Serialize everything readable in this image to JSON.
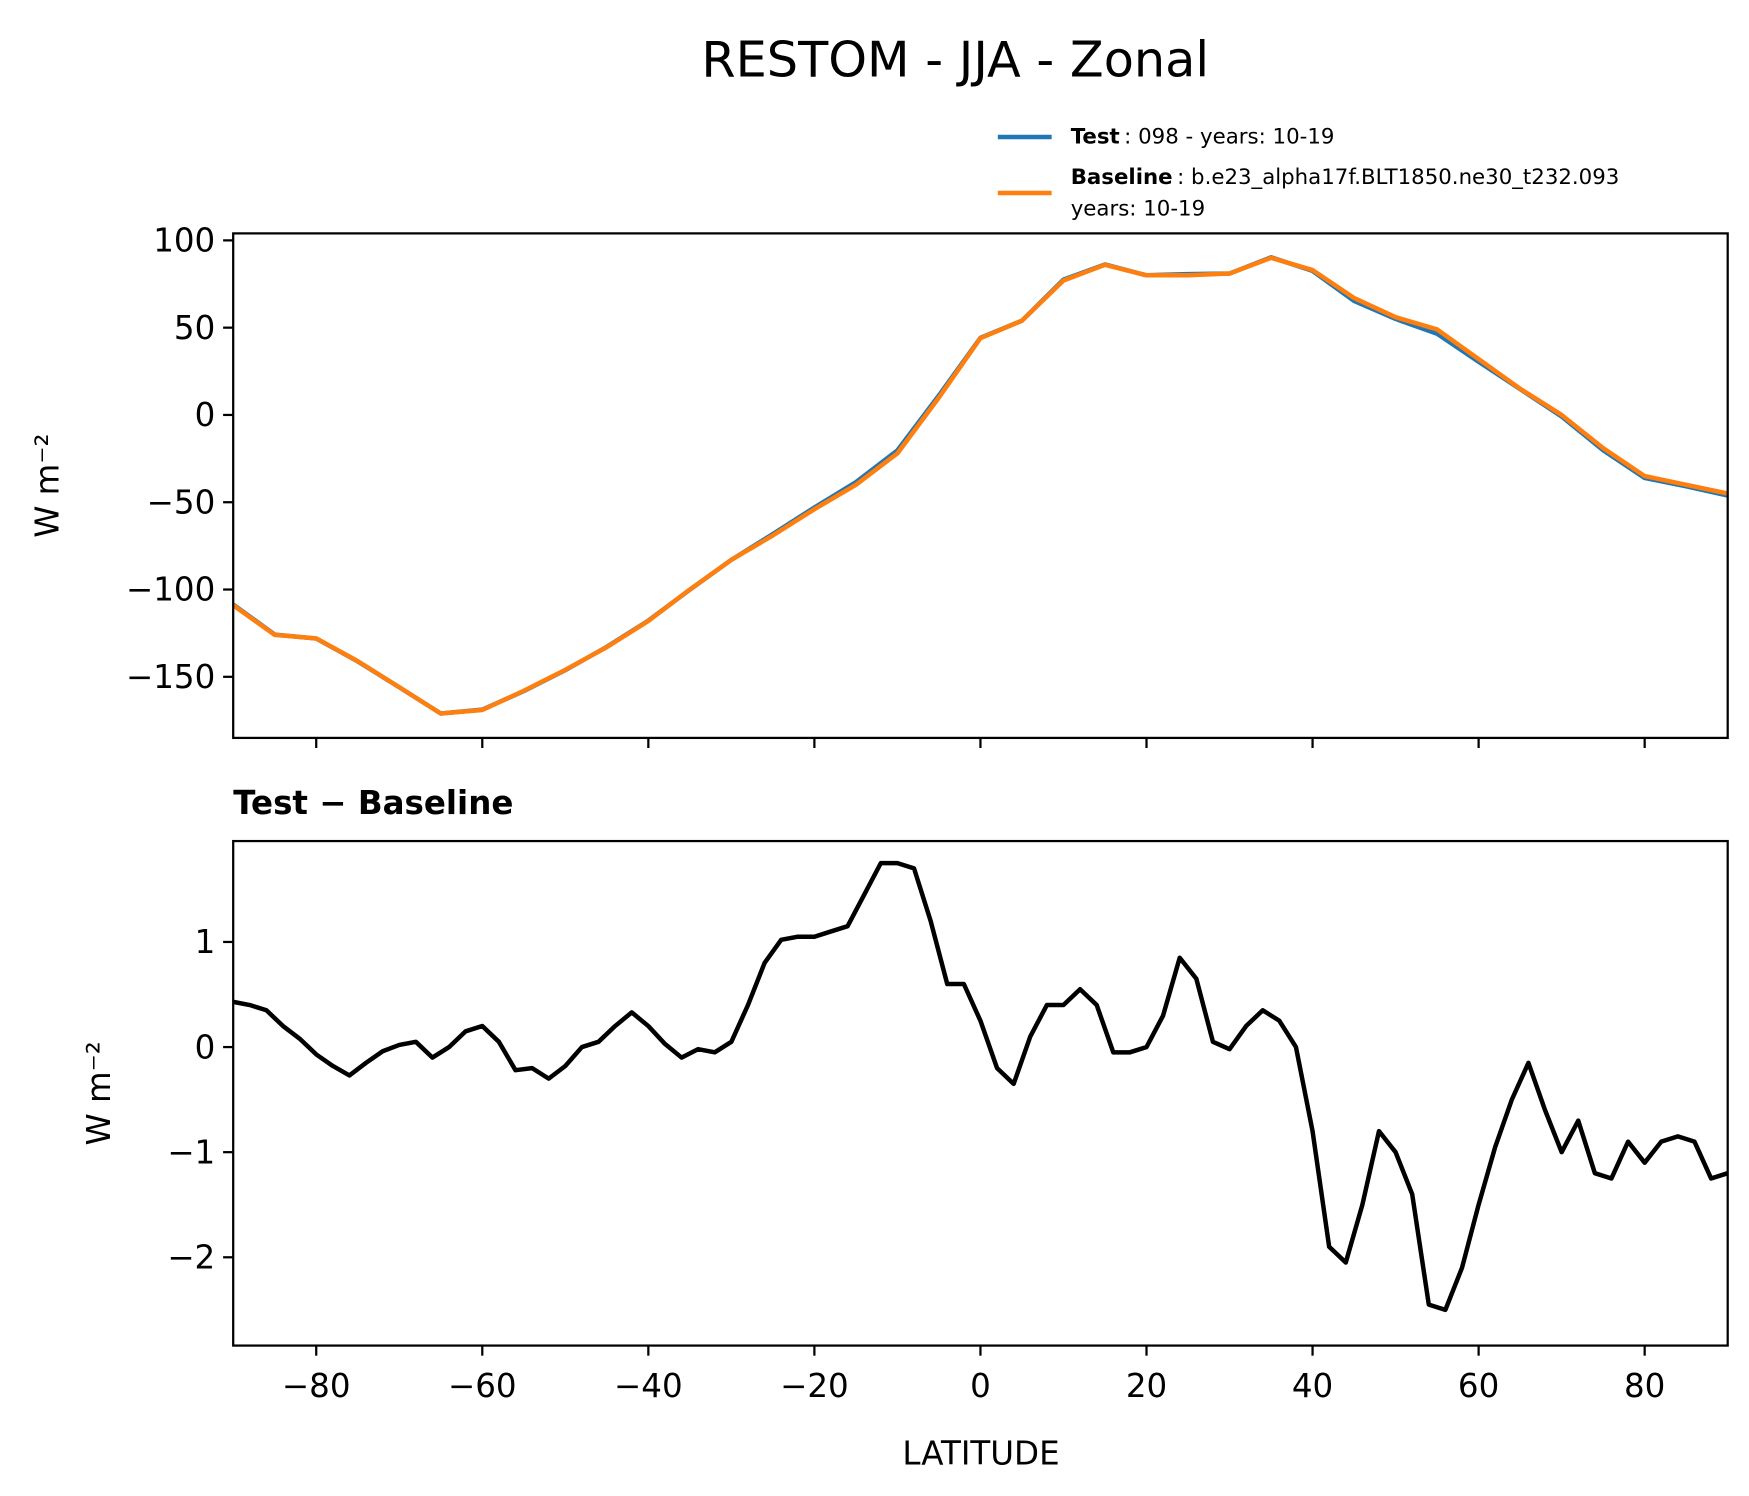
{
  "chart_data": [
    {
      "type": "line",
      "title": "RESTOM - JJA - Zonal",
      "ylabel": "W m⁻²",
      "x": [
        -90,
        -85,
        -80,
        -75,
        -70,
        -65,
        -60,
        -55,
        -50,
        -45,
        -40,
        -35,
        -30,
        -25,
        -20,
        -15,
        -10,
        -5,
        0,
        5,
        10,
        15,
        20,
        25,
        30,
        35,
        40,
        45,
        50,
        55,
        60,
        65,
        70,
        75,
        80,
        85,
        90
      ],
      "series": [
        {
          "name": "Test",
          "label": ": 098 - years: 10-19",
          "color": "#1f77b4",
          "values": [
            -108.6,
            -125.8,
            -128.1,
            -141.2,
            -156,
            -171,
            -168.8,
            -158.2,
            -146.2,
            -132.8,
            -117.8,
            -100.1,
            -83,
            -68.2,
            -53,
            -38.5,
            -20.3,
            11.2,
            44.2,
            54,
            77.5,
            86.2,
            80,
            80.7,
            81,
            90.3,
            82.5,
            65.3,
            55,
            46.5,
            30.5,
            14.8,
            -0.9,
            -20.2,
            -36.1,
            -40.9,
            -46.2
          ]
        },
        {
          "name": "Baseline",
          "label": ": b.e23_alpha17f.BLT1850.ne30_t232.093",
          "label_line2": "years: 10-19",
          "color": "#ff7f0e",
          "values": [
            -109,
            -126,
            -128,
            -141,
            -156,
            -171,
            -169,
            -158,
            -146,
            -133,
            -118,
            -100,
            -83,
            -69,
            -54,
            -40,
            -22,
            10,
            44,
            54,
            77,
            86,
            80,
            80,
            81,
            90,
            83,
            67,
            56,
            49,
            32,
            15,
            0,
            -19,
            -35,
            -40,
            -45
          ]
        }
      ],
      "xlim": [
        -90,
        90
      ],
      "xticks": [
        -80,
        -60,
        -40,
        -20,
        0,
        20,
        40,
        60,
        80
      ],
      "ylim": [
        -185,
        104
      ],
      "yticks": [
        {
          "value": -150,
          "label": "−150"
        },
        {
          "value": -100,
          "label": "−100"
        },
        {
          "value": -50,
          "label": "−50"
        },
        0,
        50,
        100
      ]
    },
    {
      "type": "line",
      "subtitle": "Test − Baseline",
      "xlabel": "LATITUDE",
      "ylabel": "W m⁻²",
      "x": [
        -90,
        -88,
        -86,
        -84,
        -82,
        -80,
        -78,
        -76,
        -74,
        -72,
        -70,
        -68,
        -66,
        -64,
        -62,
        -60,
        -58,
        -56,
        -54,
        -52,
        -50,
        -48,
        -46,
        -44,
        -42,
        -40,
        -38,
        -36,
        -34,
        -32,
        -30,
        -28,
        -26,
        -24,
        -22,
        -20,
        -18,
        -16,
        -14,
        -12,
        -10,
        -8,
        -6,
        -4,
        -2,
        0,
        2,
        4,
        6,
        8,
        10,
        12,
        14,
        16,
        18,
        20,
        22,
        24,
        26,
        28,
        30,
        32,
        34,
        36,
        38,
        40,
        42,
        44,
        46,
        48,
        50,
        52,
        54,
        56,
        58,
        60,
        62,
        64,
        66,
        68,
        70,
        72,
        74,
        76,
        78,
        80,
        82,
        84,
        86,
        88,
        90
      ],
      "series": [
        {
          "name": "Test − Baseline",
          "color": "#000000",
          "values": [
            0.43,
            0.4,
            0.35,
            0.2,
            0.08,
            -0.07,
            -0.18,
            -0.27,
            -0.15,
            -0.04,
            0.02,
            0.05,
            -0.1,
            0.0,
            0.15,
            0.2,
            0.05,
            -0.22,
            -0.2,
            -0.3,
            -0.18,
            0.0,
            0.05,
            0.2,
            0.33,
            0.2,
            0.03,
            -0.1,
            -0.02,
            -0.05,
            0.05,
            0.4,
            0.8,
            1.02,
            1.05,
            1.05,
            1.1,
            1.15,
            1.45,
            1.75,
            1.75,
            1.7,
            1.2,
            0.6,
            0.6,
            0.25,
            -0.2,
            -0.35,
            0.1,
            0.4,
            0.4,
            0.55,
            0.4,
            -0.05,
            -0.05,
            0.0,
            0.3,
            0.85,
            0.65,
            0.05,
            -0.02,
            0.2,
            0.35,
            0.25,
            0.0,
            -0.8,
            -1.9,
            -2.05,
            -1.5,
            -0.8,
            -1.0,
            -1.4,
            -2.45,
            -2.5,
            -2.1,
            -1.5,
            -0.95,
            -0.5,
            -0.15,
            -0.6,
            -1.0,
            -0.7,
            -1.2,
            -1.25,
            -0.9,
            -1.1,
            -0.9,
            -0.85,
            -0.9,
            -1.25,
            -1.2
          ]
        }
      ],
      "xlim": [
        -90,
        90
      ],
      "xticks": [
        {
          "value": -80,
          "label": "−80"
        },
        {
          "value": -60,
          "label": "−60"
        },
        {
          "value": -40,
          "label": "−40"
        },
        {
          "value": -20,
          "label": "−20"
        },
        0,
        20,
        40,
        60,
        80
      ],
      "ylim": [
        -2.84,
        1.96
      ],
      "yticks": [
        {
          "value": -2,
          "label": "−2"
        },
        {
          "value": -1,
          "label": "−1"
        },
        0,
        1
      ]
    }
  ]
}
